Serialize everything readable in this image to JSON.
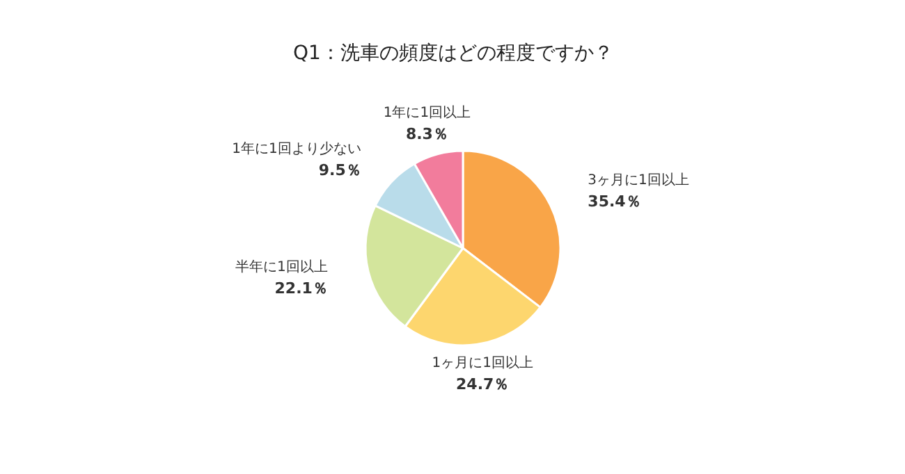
{
  "chart_data": {
    "type": "pie",
    "title": "Q1：洗車の頻度はどの程度ですか？",
    "categories": [
      "3ヶ月に1回以上",
      "1ヶ月に1回以上",
      "半年に1回以上",
      "1年に1回より少ない",
      "1年に1回以上"
    ],
    "values": [
      35.4,
      24.7,
      22.1,
      9.5,
      8.3
    ],
    "value_labels": [
      "35.4％",
      "24.7％",
      "22.1％",
      "9.5％",
      "8.3％"
    ],
    "colors": [
      "#f9a548",
      "#fdd66e",
      "#d3e59c",
      "#b9dcea",
      "#f27c9c"
    ],
    "legend": false
  }
}
